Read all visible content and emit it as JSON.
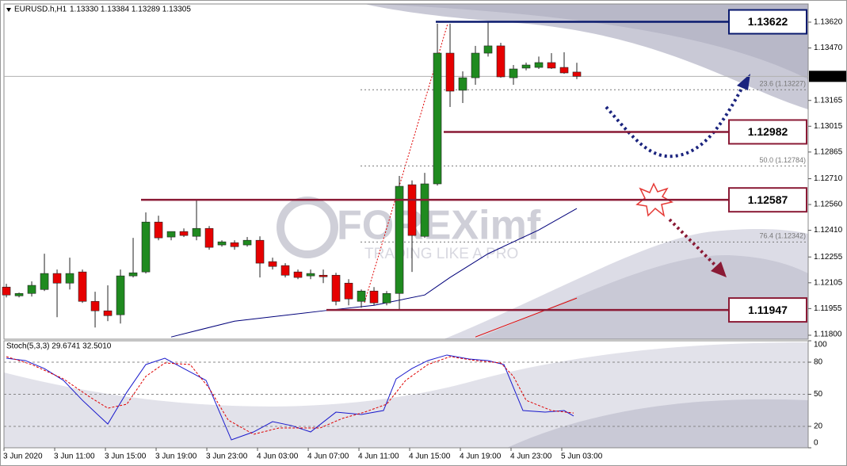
{
  "chart_data": [
    {
      "type": "candlestick",
      "title": "EURUSD.h,H1",
      "subtitle": "1.13330 1.13384 1.13289 1.13305",
      "categories": [
        "3 Jun 2020",
        null,
        null,
        null,
        "3 Jun 11:00",
        null,
        null,
        null,
        "3 Jun 15:00",
        null,
        null,
        null,
        "3 Jun 19:00",
        null,
        null,
        null,
        "3 Jun 23:00",
        null,
        null,
        null,
        "4 Jun 03:00",
        null,
        null,
        null,
        "4 Jun 07:00",
        null,
        null,
        null,
        "4 Jun 11:00",
        null,
        null,
        null,
        "4 Jun 15:00",
        null,
        null,
        null,
        "4 Jun 19:00",
        null,
        null,
        null,
        "4 Jun 23:00",
        null,
        null,
        null,
        "5 Jun 03:00",
        null
      ],
      "open": [
        1.1208,
        1.12029,
        1.12043,
        1.12066,
        1.12159,
        1.12103,
        1.12168,
        1.11997,
        1.11942,
        1.11919,
        1.12145,
        1.12168,
        1.12458,
        1.12371,
        1.12403,
        1.12375,
        1.12421,
        1.12325,
        1.12338,
        1.12325,
        1.12352,
        1.12228,
        1.12205,
        1.12168,
        1.12145,
        1.12149,
        1.12149,
        1.12103,
        1.11997,
        1.12057,
        1.11988,
        1.12043,
        1.12675,
        1.12375,
        1.1268,
        1.1344,
        1.13224,
        1.13297,
        1.1344,
        1.13482,
        1.13297,
        1.13353,
        1.13357,
        1.13385,
        1.13357,
        1.1333
      ],
      "high": [
        1.12099,
        1.12048,
        1.12113,
        1.12274,
        1.12182,
        1.12251,
        1.12182,
        1.12053,
        1.1209,
        1.12182,
        1.12366,
        1.12514,
        1.12495,
        1.12403,
        1.12421,
        1.12583,
        1.12435,
        1.12352,
        1.12352,
        1.12371,
        1.12375,
        1.12251,
        1.12219,
        1.12182,
        1.12182,
        1.12182,
        1.12163,
        1.12126,
        1.12066,
        1.1208,
        1.12057,
        1.12726,
        1.127,
        1.12744,
        1.13611,
        1.13611,
        1.13334,
        1.13482,
        1.1362,
        1.135,
        1.13371,
        1.13385,
        1.1342,
        1.1344,
        1.13445,
        1.13384
      ],
      "low": [
        1.1202,
        1.1202,
        1.12025,
        1.12057,
        1.11905,
        1.12066,
        1.11988,
        1.11845,
        1.11882,
        1.11868,
        1.12136,
        1.12159,
        1.12352,
        1.12352,
        1.12371,
        1.12352,
        1.12297,
        1.12315,
        1.12297,
        1.12315,
        1.12136,
        1.12182,
        1.12136,
        1.12126,
        1.12126,
        1.12103,
        1.11974,
        1.11974,
        1.1196,
        1.11974,
        1.11974,
        1.11951,
        1.12168,
        1.12366,
        1.1267,
        1.13127,
        1.1315,
        1.13256,
        1.1342,
        1.13297,
        1.13256,
        1.1334,
        1.13348,
        1.13348,
        1.1332,
        1.13289
      ],
      "close": [
        1.12034,
        1.12043,
        1.1209,
        1.12159,
        1.12103,
        1.12159,
        1.11997,
        1.11942,
        1.11914,
        1.12145,
        1.12163,
        1.12458,
        1.12366,
        1.12403,
        1.1238,
        1.12421,
        1.12311,
        1.12343,
        1.12315,
        1.12352,
        1.12219,
        1.122,
        1.12149,
        1.12136,
        1.12159,
        1.1214,
        1.11997,
        1.12011,
        1.12057,
        1.11988,
        1.12043,
        1.12666,
        1.1238,
        1.1268,
        1.1344,
        1.13219,
        1.13297,
        1.1344,
        1.13482,
        1.13302,
        1.13348,
        1.13371,
        1.13385,
        1.13353,
        1.13325,
        1.13305
      ],
      "up_color": "#1f8a1f",
      "down_color": "#e60000",
      "xlim": [
        -0.19,
        63.25
      ],
      "ylim": [
        1.11777,
        1.13712
      ],
      "yticks": [
        {
          "value": 1.1362,
          "label": "1.13620"
        },
        {
          "value": 1.1347,
          "label": "1.13470"
        },
        1.13165,
        1.13015,
        1.12865,
        {
          "value": 1.1271,
          "label": "1.12710"
        },
        {
          "value": 1.1256,
          "label": "1.12560"
        },
        {
          "value": 1.1241,
          "label": "1.12410"
        },
        1.12255,
        1.12105,
        1.11955,
        {
          "value": 1.118,
          "label": "1.11800"
        }
      ],
      "current_price": 1.13305,
      "lines": [
        {
          "color": "#00007a",
          "x": [
            13,
            18,
            25,
            29,
            33,
            35,
            38,
            42,
            45
          ],
          "values": [
            1.1179,
            1.11882,
            1.11942,
            1.11974,
            1.12034,
            1.12136,
            1.12274,
            1.12412,
            1.12537
          ]
        },
        {
          "color": "#e00000",
          "x": [
            37,
            45
          ],
          "values": [
            1.1179,
            1.12016
          ]
        }
      ],
      "levels": [
        {
          "value": 1.13622,
          "color": "#0a1a6e"
        },
        {
          "value": 1.12982,
          "color": "#8a1a35"
        },
        {
          "value": 1.12587,
          "color": "#8a1a35"
        },
        {
          "value": 1.11947,
          "color": "#8a1a35"
        }
      ],
      "fib": [
        {
          "label": "23.6 (1.13227)",
          "value": 1.13227
        },
        {
          "label": "50.0 (1.12784)",
          "value": 1.12784
        },
        {
          "label": "76.4 (1.12342)",
          "value": 1.12342
        }
      ],
      "watermark": {
        "brand": "FOREXimf",
        "tagline": "TRADING LIKE A PRO"
      }
    },
    {
      "type": "line",
      "title": "Stoch(5,3,3) 29.6741 32.5010",
      "xlim": [
        -0.19,
        63.25
      ],
      "ylim": [
        0,
        100
      ],
      "yticks": [
        100,
        80,
        50,
        20,
        0
      ],
      "levels": [
        80,
        50,
        20
      ],
      "series": [
        {
          "color": "#1a1acc",
          "dash": false,
          "x": [
            0,
            1.5,
            3,
            4.5,
            6,
            8,
            9.5,
            11,
            12.5,
            14,
            15.75,
            17.75,
            19.5,
            21,
            22.5,
            24,
            26,
            28,
            29.75,
            30.75,
            32,
            33.25,
            34.75,
            36.5,
            38,
            39.25,
            40.75,
            42.5,
            44,
            44.75
          ],
          "values": [
            83.7,
            81.5,
            74,
            63,
            44.4,
            22.2,
            51.9,
            77.8,
            83.7,
            74,
            63,
            7.4,
            14.8,
            24.4,
            20.7,
            14.8,
            33.3,
            31.1,
            34.8,
            64.4,
            74.1,
            81.5,
            86.7,
            83,
            81.5,
            77.8,
            34.8,
            33.3,
            34.8,
            29.7
          ]
        },
        {
          "color": "#e00000",
          "dash": true,
          "x": [
            0,
            2,
            4.5,
            6.5,
            8,
            9.5,
            11,
            12.5,
            14.5,
            16,
            17.5,
            19.5,
            21.5,
            23.25,
            24.75,
            26.5,
            28.25,
            30,
            31.5,
            33.25,
            35,
            37,
            39,
            40,
            41,
            43,
            44.75
          ],
          "values": [
            85.2,
            77.8,
            64.4,
            48.1,
            37,
            40.7,
            66.7,
            79.3,
            77.8,
            55.6,
            25.9,
            12.6,
            18.5,
            18.5,
            18.5,
            27.4,
            33.3,
            40.7,
            63,
            77.8,
            85.2,
            81.5,
            79.3,
            66.7,
            44.4,
            34.8,
            32.5
          ]
        }
      ]
    }
  ]
}
